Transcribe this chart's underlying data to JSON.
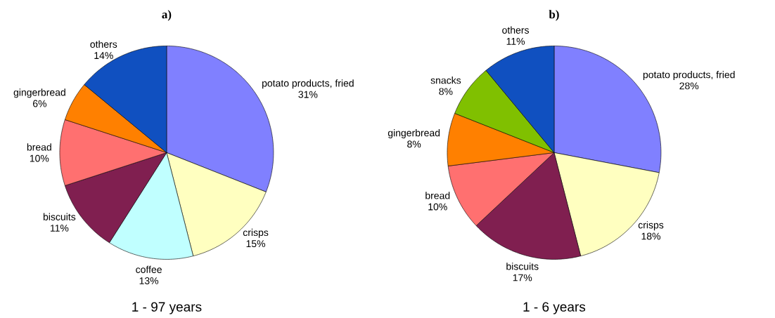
{
  "chart_data": [
    {
      "type": "pie",
      "title": "a)",
      "xlabel": "1 - 97 years",
      "categories": [
        "potato products, fried",
        "crisps",
        "coffee",
        "biscuits",
        "bread",
        "gingerbread",
        "others"
      ],
      "values": [
        31,
        15,
        13,
        11,
        10,
        6,
        14
      ],
      "value_labels": [
        "31%",
        "15%",
        "13%",
        "11%",
        "10%",
        "6%",
        "14%"
      ],
      "colors": [
        "#8080ff",
        "#ffffc0",
        "#c0ffff",
        "#801f50",
        "#ff7070",
        "#ff8000",
        "#1050c0"
      ]
    },
    {
      "type": "pie",
      "title": "b)",
      "xlabel": "1 - 6 years",
      "categories": [
        "potato products, fried",
        "crisps",
        "biscuits",
        "bread",
        "gingerbread",
        "snacks",
        "others"
      ],
      "values": [
        28,
        18,
        17,
        10,
        8,
        8,
        11
      ],
      "value_labels": [
        "28%",
        "18%",
        "17%",
        "10%",
        "8%",
        "8%",
        "11%"
      ],
      "colors": [
        "#8080ff",
        "#ffffc0",
        "#801f50",
        "#ff7070",
        "#ff8000",
        "#80c000",
        "#1050c0"
      ]
    }
  ]
}
